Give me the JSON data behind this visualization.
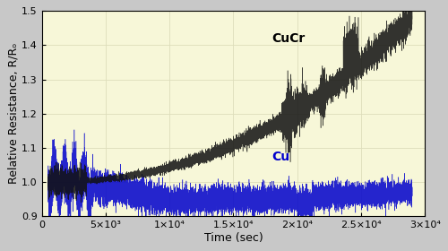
{
  "title": "",
  "xlabel": "Time (sec)",
  "ylabel": "Relative Resistance, R/Rₒ",
  "xlim": [
    0,
    30000
  ],
  "ylim": [
    0.9,
    1.5
  ],
  "yticks": [
    0.9,
    1.0,
    1.1,
    1.2,
    1.3,
    1.4,
    1.5
  ],
  "xticks": [
    0,
    5000,
    10000,
    15000,
    20000,
    25000,
    30000
  ],
  "xtick_labels": [
    "0",
    "5×10³",
    "1×10⁴",
    "1.5×10⁴",
    "2×10⁴",
    "2.5×10⁴",
    "3×10⁴"
  ],
  "background_color": "#f7f7d8",
  "fig_background": "#c8c8c8",
  "cucr_color": "#111111",
  "cu_color": "#0000cc",
  "cucr_label": "CuCr",
  "cu_label": "Cu",
  "label_fontsize": 9,
  "tick_fontsize": 8,
  "annotation_fontsize": 10
}
